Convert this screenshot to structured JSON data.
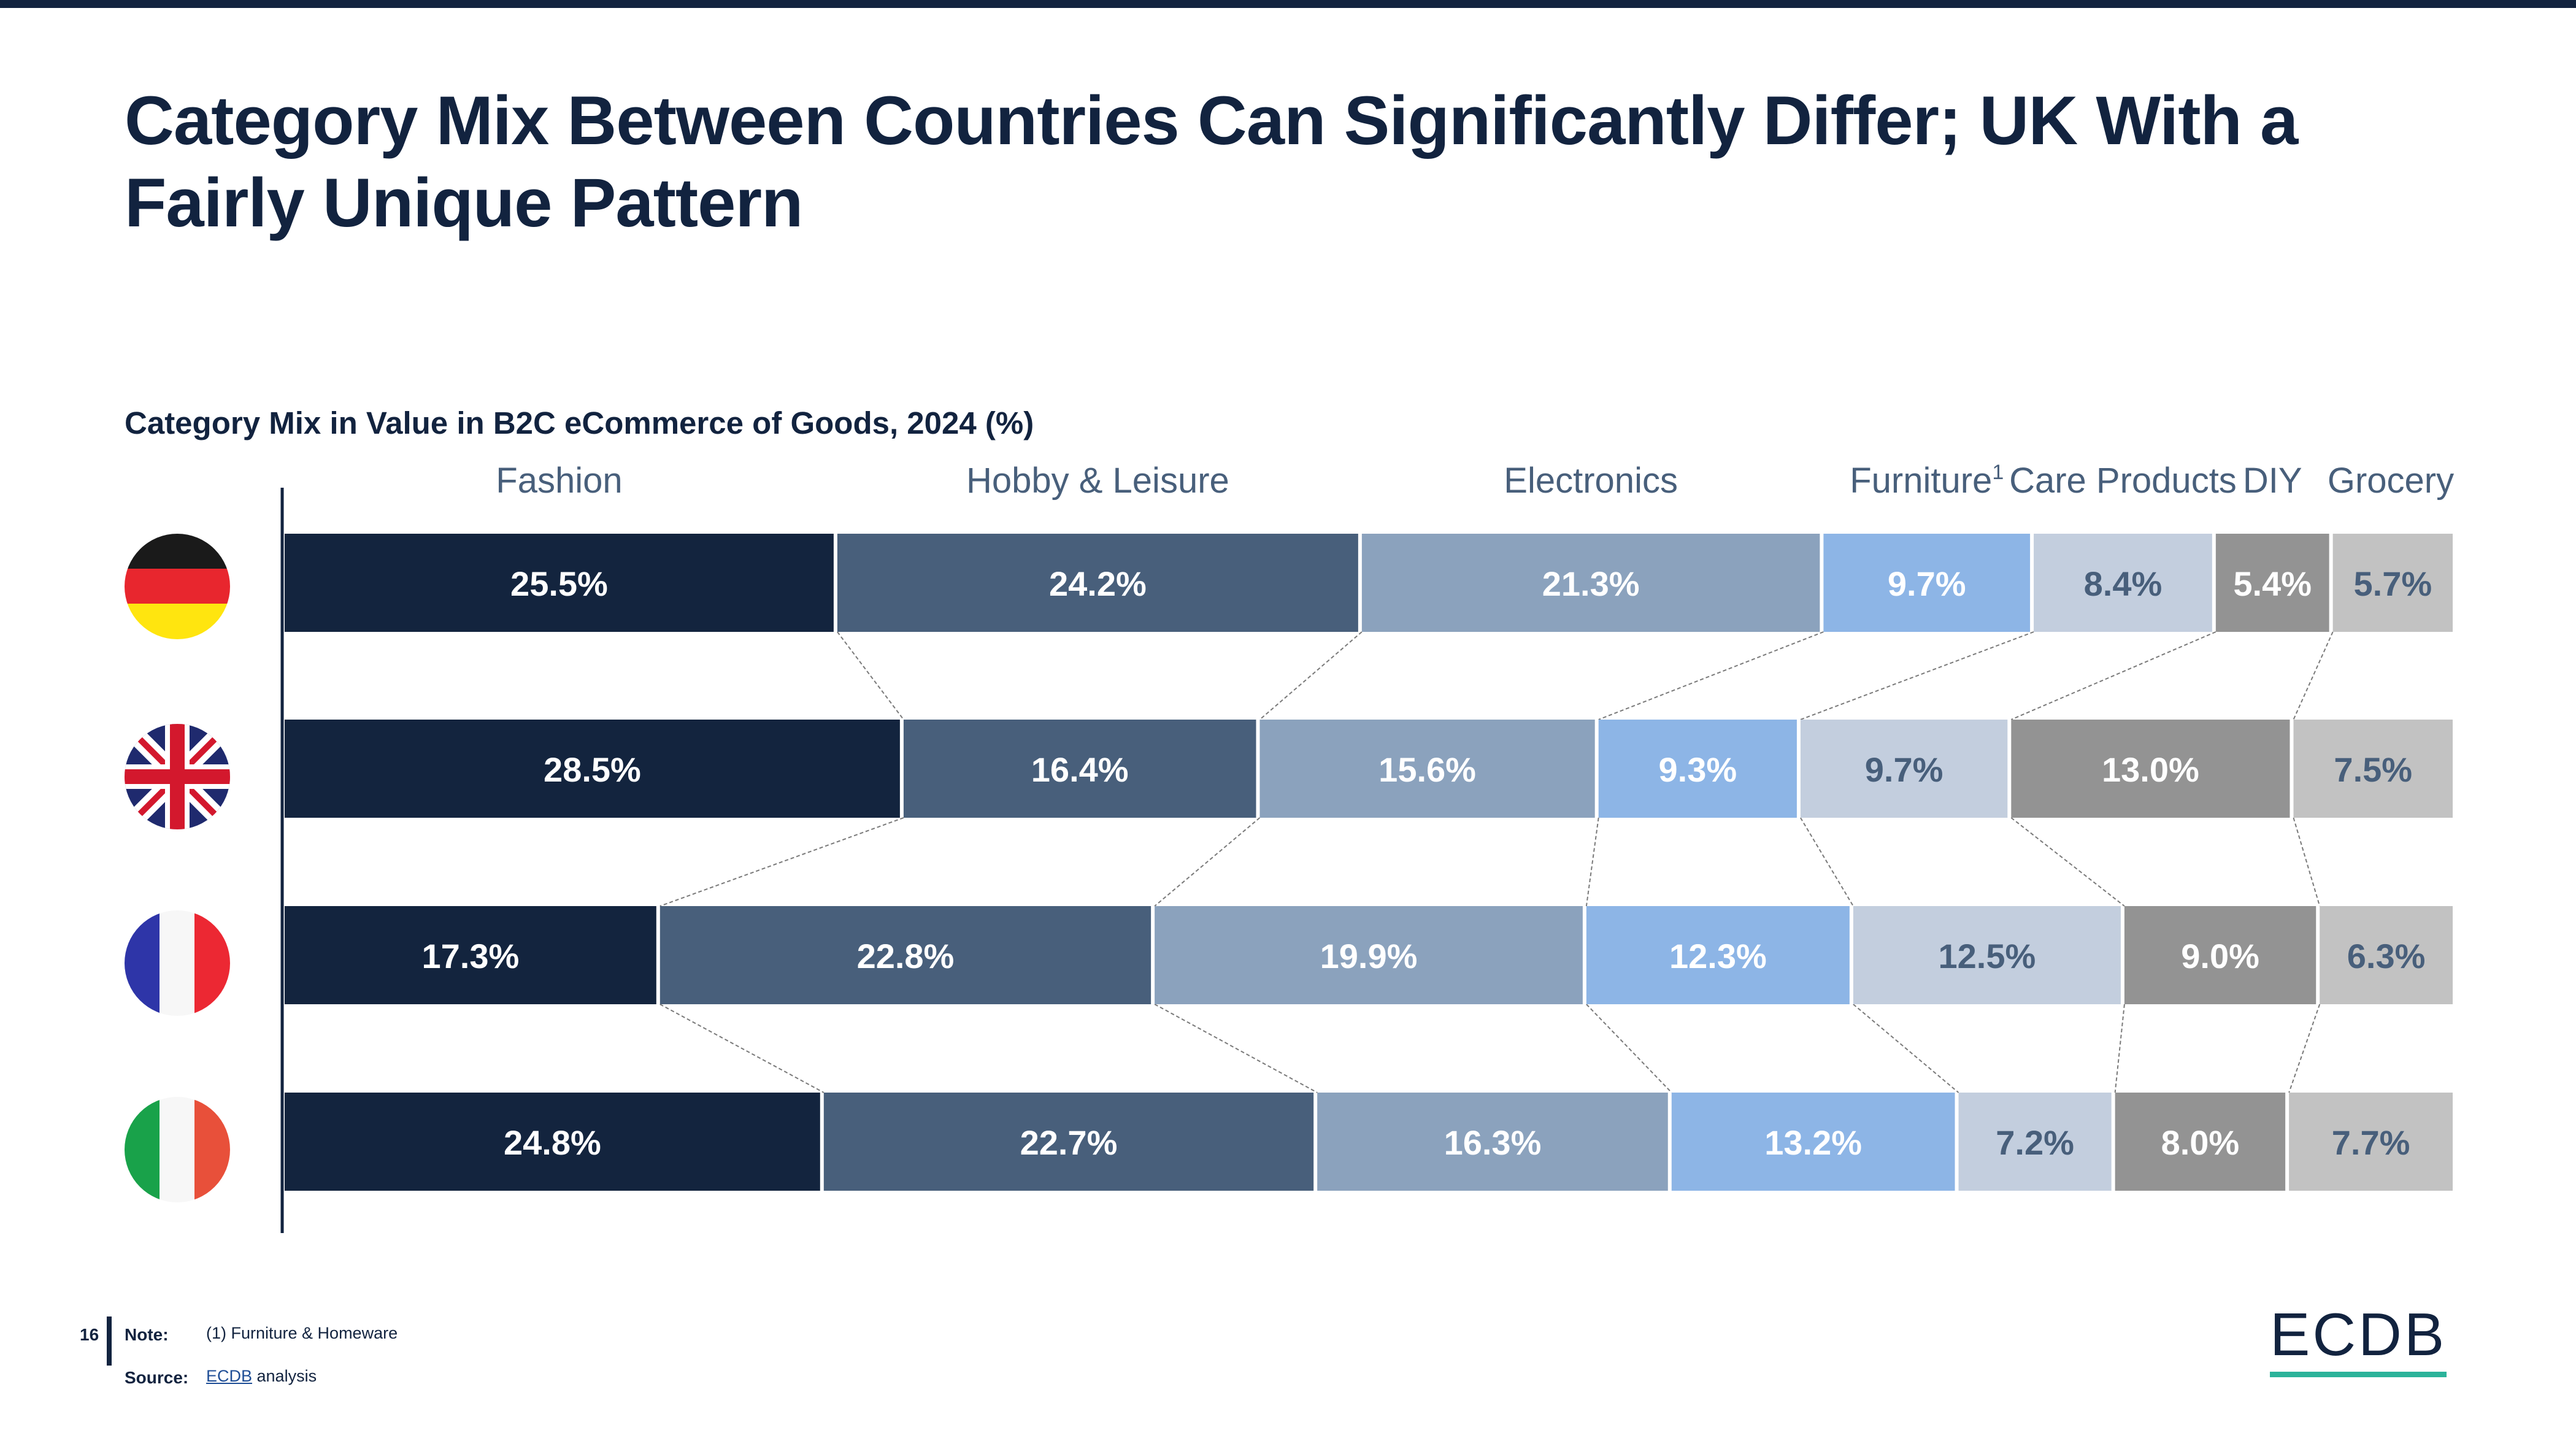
{
  "page": {
    "title_line1": "Category Mix Between Countries Can Significantly Differ; UK With a",
    "title_line2": "Fairly Unique Pattern",
    "page_number": "16"
  },
  "chart_data": {
    "type": "bar",
    "orientation": "horizontal",
    "stacked": true,
    "title": "Category Mix in Value in B2C eCommerce of Goods, 2024 (%)",
    "unit": "%",
    "xlim": [
      0,
      100
    ],
    "categories": [
      "Germany",
      "United Kingdom",
      "France",
      "Italy"
    ],
    "series": [
      {
        "name": "Fashion",
        "label": "Fashion",
        "color": "#13243e",
        "text_color": "#ffffff",
        "values": [
          25.5,
          28.5,
          17.3,
          24.8
        ]
      },
      {
        "name": "Hobby & Leisure",
        "label": "Hobby & Leisure",
        "color": "#485f7b",
        "text_color": "#ffffff",
        "values": [
          24.2,
          16.4,
          22.8,
          22.7
        ]
      },
      {
        "name": "Electronics",
        "label": "Electronics",
        "color": "#8ba2bd",
        "text_color": "#ffffff",
        "values": [
          21.3,
          15.6,
          19.9,
          16.3
        ]
      },
      {
        "name": "Furniture",
        "label": "Furniture",
        "footnote_mark": "1",
        "color": "#8db5e6",
        "text_color": "#ffffff",
        "values": [
          9.7,
          9.3,
          12.3,
          13.2
        ]
      },
      {
        "name": "Care Products",
        "label": "Care Products",
        "color": "#c3cede",
        "text_color": "#485f7b",
        "values": [
          8.4,
          9.7,
          12.5,
          7.2
        ]
      },
      {
        "name": "DIY",
        "label": "DIY",
        "color": "#939393",
        "text_color": "#ffffff",
        "values": [
          5.4,
          13.0,
          9.0,
          8.0
        ]
      },
      {
        "name": "Grocery",
        "label": "Grocery",
        "color": "#c2c2c2",
        "text_color": "#485f7b",
        "values": [
          5.7,
          7.5,
          6.3,
          7.7
        ]
      }
    ],
    "data_labels": [
      [
        "25.5%",
        "24.2%",
        "21.3%",
        "9.7%",
        "8.4%",
        "5.4%",
        "5.7%"
      ],
      [
        "28.5%",
        "16.4%",
        "15.6%",
        "9.3%",
        "9.7%",
        "13.0%",
        "7.5%"
      ],
      [
        "17.3%",
        "22.8%",
        "19.9%",
        "12.3%",
        "12.5%",
        "9.0%",
        "6.3%"
      ],
      [
        "24.8%",
        "22.7%",
        "16.3%",
        "13.2%",
        "7.2%",
        "8.0%",
        "7.7%"
      ]
    ],
    "legend": "top",
    "connector_lines": true
  },
  "flags": [
    {
      "country": "Germany",
      "icon": "germany-flag-icon",
      "colors": [
        "#1a1a1a",
        "#e8262e",
        "#ffe50f"
      ]
    },
    {
      "country": "United Kingdom",
      "icon": "uk-flag-icon",
      "colors": [
        "#1f2a6e",
        "#ffffff",
        "#d3182d"
      ]
    },
    {
      "country": "France",
      "icon": "france-flag-icon",
      "colors": [
        "#2e35a8",
        "#f7f7f7",
        "#ec2833"
      ]
    },
    {
      "country": "Italy",
      "icon": "italy-flag-icon",
      "colors": [
        "#19a24a",
        "#f7f7f7",
        "#e8503a"
      ]
    }
  ],
  "footer": {
    "note_label": "Note:",
    "note_text": "(1) Furniture & Homeware",
    "source_label": "Source:",
    "source_link": "ECDB",
    "source_text": " analysis",
    "logo_text": "ECDB",
    "logo_accent": "#2bb39a"
  }
}
